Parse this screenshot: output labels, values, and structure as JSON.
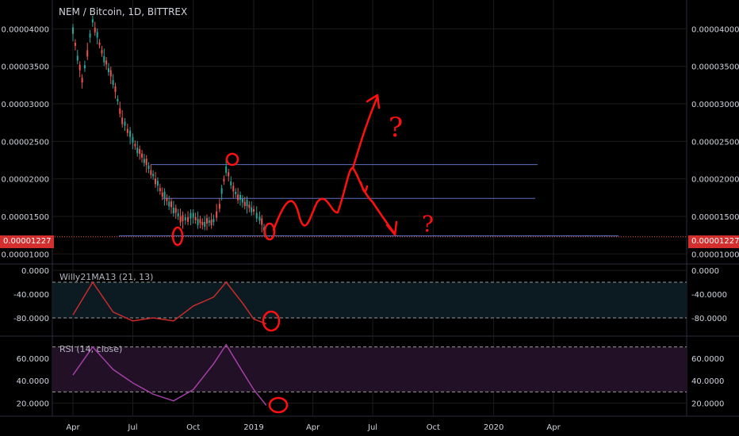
{
  "header": {
    "title": "NEM / Bitcoin, 1D, BITTREX"
  },
  "current_price": "0.00001227",
  "colors": {
    "bg": "#000000",
    "grid": "#1b1b1b",
    "up": "#26a69a",
    "down": "#ef5350",
    "willy_line": "#c92b2b",
    "willy_fill": "#0c1b21",
    "rsi_line": "#a33fa6",
    "rsi_fill": "#221026",
    "hline": "#5c6fc2",
    "drawing": "#ff1010"
  },
  "chart_data": [
    {
      "type": "line",
      "title": "NEM / Bitcoin, 1D, BITTREX",
      "series": [
        {
          "name": "NEM / Bitcoin",
          "x": [
            "2018-04-01",
            "2018-04-15",
            "2018-05-01",
            "2018-05-15",
            "2018-06-01",
            "2018-06-15",
            "2018-07-01",
            "2018-07-15",
            "2018-08-01",
            "2018-08-15",
            "2018-09-01",
            "2018-09-15",
            "2018-10-01",
            "2018-10-15",
            "2018-11-01",
            "2018-11-10",
            "2018-11-20",
            "2018-12-01",
            "2018-12-15",
            "2019-01-01",
            "2019-01-10",
            "2019-01-20"
          ],
          "values": [
            3.95e-05,
            3.3e-05,
            4.1e-05,
            3.7e-05,
            3.3e-05,
            2.8e-05,
            2.5e-05,
            2.3e-05,
            2.05e-05,
            1.8e-05,
            1.6e-05,
            1.45e-05,
            1.5e-05,
            1.4e-05,
            1.45e-05,
            1.65e-05,
            2.15e-05,
            1.85e-05,
            1.7e-05,
            1.58e-05,
            1.48e-05,
            1.25e-05
          ]
        }
      ],
      "y_ticks": [
        "0.00004000",
        "0.00003500",
        "0.00003000",
        "0.00002500",
        "0.00002000",
        "0.00001500",
        "0.00001000"
      ],
      "ylim": [
        9.5e-06,
        4.3e-05
      ],
      "hlines": [
        2.19e-05,
        1.74e-05,
        1.24e-05
      ]
    },
    {
      "type": "line",
      "title": "Willy21MA13 (21, 13)",
      "y_ticks": [
        "0.0000",
        "-40.0000",
        "-80.0000"
      ],
      "ylim": [
        -100,
        0
      ],
      "hlines": [
        -20,
        -80
      ],
      "series": [
        {
          "name": "Willy21MA13",
          "x": [
            "2018-04-01",
            "2018-05-01",
            "2018-06-01",
            "2018-07-01",
            "2018-08-01",
            "2018-09-01",
            "2018-10-01",
            "2018-11-01",
            "2018-11-20",
            "2018-12-15",
            "2019-01-01",
            "2019-01-20"
          ],
          "values": [
            -75,
            -20,
            -70,
            -85,
            -80,
            -85,
            -60,
            -45,
            -20,
            -55,
            -82,
            -90
          ]
        }
      ]
    },
    {
      "type": "line",
      "title": "RSI (14, close)",
      "y_ticks": [
        "60.0000",
        "40.0000",
        "20.0000"
      ],
      "ylim": [
        14,
        74
      ],
      "hlines": [
        70,
        30
      ],
      "series": [
        {
          "name": "RSI",
          "x": [
            "2018-04-01",
            "2018-05-01",
            "2018-06-01",
            "2018-07-01",
            "2018-08-01",
            "2018-09-01",
            "2018-10-01",
            "2018-11-01",
            "2018-11-20",
            "2018-12-15",
            "2019-01-01",
            "2019-01-20"
          ],
          "values": [
            45,
            70,
            50,
            38,
            28,
            22,
            32,
            55,
            72,
            48,
            32,
            18
          ]
        }
      ]
    }
  ],
  "x_axis": {
    "labels": [
      "Apr",
      "Jul",
      "Oct",
      "2019",
      "Apr",
      "Jul",
      "Oct",
      "2020",
      "Apr"
    ]
  },
  "annotations": {
    "question_mark": "?"
  }
}
